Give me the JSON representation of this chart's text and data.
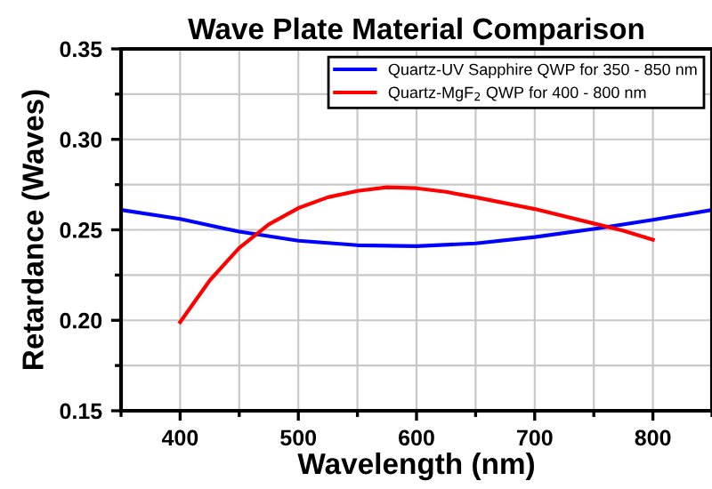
{
  "chart_data": {
    "type": "line",
    "title": "Wave Plate Material Comparison",
    "xlabel": "Wavelength (nm)",
    "ylabel": "Retardance (Waves)",
    "series": [
      {
        "name": "Quartz-UV Sapphire QWP for 350 - 850 nm",
        "color": "#0000ff",
        "x": [
          350,
          400,
          450,
          500,
          550,
          600,
          650,
          700,
          750,
          800,
          850
        ],
        "values": [
          0.261,
          0.256,
          0.249,
          0.244,
          0.2415,
          0.241,
          0.2425,
          0.246,
          0.2505,
          0.2555,
          0.261
        ]
      },
      {
        "name": "Quartz-MgF$_{2}$ QWP for 400 - 800 nm",
        "color": "#ff0000",
        "x": [
          400,
          425,
          450,
          475,
          500,
          525,
          550,
          575,
          600,
          625,
          650,
          700,
          750,
          775,
          800
        ],
        "values": [
          0.199,
          0.222,
          0.24,
          0.253,
          0.262,
          0.268,
          0.2715,
          0.2735,
          0.273,
          0.271,
          0.268,
          0.2615,
          0.2535,
          0.2495,
          0.2445
        ]
      }
    ],
    "xlim": [
      350,
      850
    ],
    "xticks": [
      400,
      500,
      600,
      700,
      800
    ],
    "ylim": [
      0.15,
      0.35
    ],
    "yticks": [
      {
        "value": 0.15,
        "label": "0.15"
      },
      {
        "value": 0.2,
        "label": "0.20"
      },
      {
        "value": 0.25,
        "label": "0.25"
      },
      {
        "value": 0.3,
        "label": "0.30"
      },
      {
        "value": 0.35,
        "label": "0.35"
      }
    ],
    "grid": true,
    "legend": "top right",
    "marker": "none",
    "line_style": "solid"
  }
}
